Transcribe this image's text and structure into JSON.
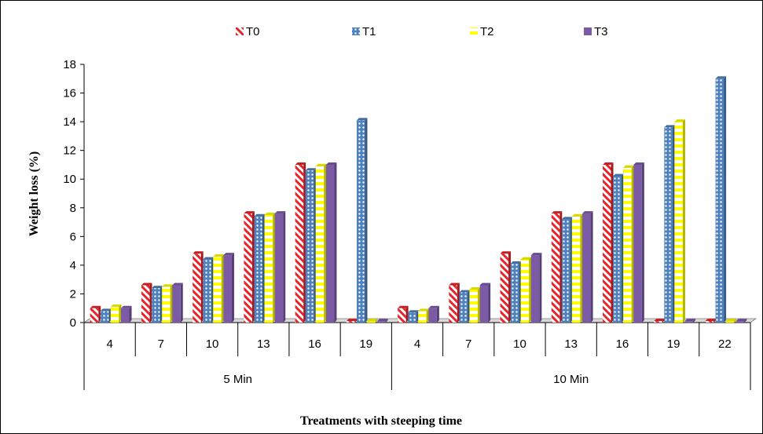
{
  "chart_data": {
    "type": "bar",
    "title": "",
    "xlabel": "Treatments with steeping time",
    "ylabel": "Weight loss (%)",
    "ylim": [
      0,
      18
    ],
    "yticks": [
      0,
      2,
      4,
      6,
      8,
      10,
      12,
      14,
      16,
      18
    ],
    "grid": false,
    "legend_position": "top",
    "groups": [
      {
        "label": "5 Min",
        "categories": [
          "4",
          "7",
          "10",
          "13",
          "16",
          "19"
        ]
      },
      {
        "label": "10 Min",
        "categories": [
          "4",
          "7",
          "10",
          "13",
          "16",
          "19",
          "22"
        ]
      }
    ],
    "series": [
      {
        "name": "T0",
        "color": "#e8242b",
        "pattern": "diagonal-stripes",
        "values": [
          1.0,
          2.6,
          4.8,
          7.6,
          11.0,
          0.1,
          1.0,
          2.6,
          4.8,
          7.6,
          11.0,
          0.1,
          0.1
        ]
      },
      {
        "name": "T1",
        "color": "#4f81bd",
        "pattern": "dotted",
        "values": [
          0.8,
          2.4,
          4.4,
          7.4,
          10.6,
          14.1,
          0.7,
          2.1,
          4.1,
          7.2,
          10.2,
          13.6,
          17.0
        ]
      },
      {
        "name": "T2",
        "color": "#ffff00",
        "pattern": "dashes",
        "values": [
          1.1,
          2.5,
          4.6,
          7.5,
          10.9,
          0.1,
          0.8,
          2.3,
          4.4,
          7.4,
          10.8,
          14.0,
          0.1
        ]
      },
      {
        "name": "T3",
        "color": "#7b5aa6",
        "pattern": "solid",
        "values": [
          1.0,
          2.6,
          4.7,
          7.6,
          11.0,
          0.1,
          1.0,
          2.6,
          4.7,
          7.6,
          11.0,
          0.1,
          0.1
        ]
      }
    ]
  }
}
